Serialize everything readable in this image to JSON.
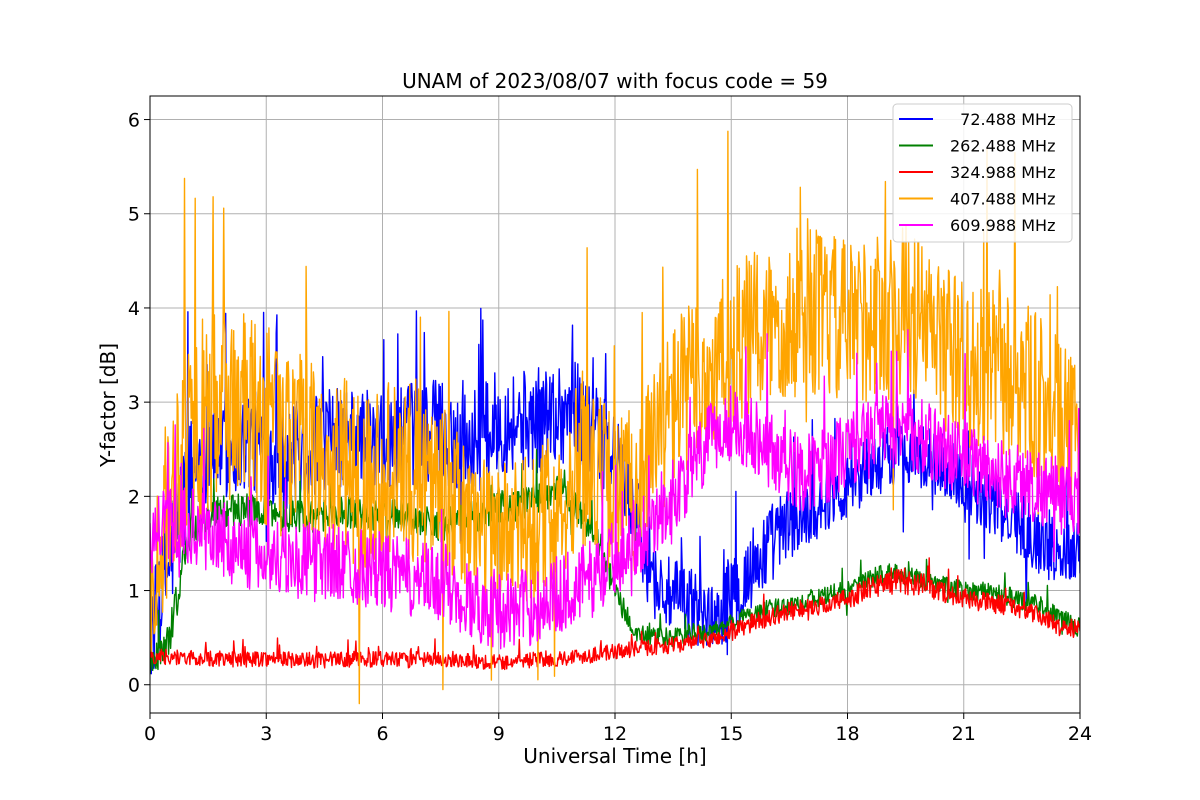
{
  "chart_data": {
    "type": "line",
    "title": "UNAM of 2023/08/07 with focus code = 59",
    "xlabel": "Universal Time [h]",
    "ylabel": "Y-factor [dB]",
    "xlim": [
      0,
      24
    ],
    "ylim": [
      -0.3,
      6.25
    ],
    "xticks": [
      "0",
      "3",
      "6",
      "9",
      "12",
      "15",
      "18",
      "21",
      "24"
    ],
    "yticks": [
      "0",
      "1",
      "2",
      "3",
      "4",
      "5",
      "6"
    ],
    "grid": true,
    "legend_position": "top-right",
    "series": [
      {
        "name": "  72.488 MHz",
        "color": "#0000ff",
        "x": [
          0,
          0.5,
          1,
          1.5,
          2,
          2.5,
          3,
          3.5,
          4,
          4.5,
          5,
          5.5,
          6,
          6.5,
          7,
          7.5,
          8,
          8.5,
          9,
          9.5,
          10,
          10.5,
          11,
          11.5,
          12,
          12.5,
          13,
          13.5,
          14,
          14.5,
          15,
          15.5,
          16,
          16.5,
          17,
          17.5,
          18,
          18.5,
          19,
          19.5,
          20,
          20.5,
          21,
          21.5,
          22,
          22.5,
          23,
          23.5,
          24
        ],
        "mid": [
          0.5,
          1.3,
          2.2,
          2.6,
          2.5,
          2.6,
          2.5,
          2.4,
          2.5,
          2.6,
          2.6,
          2.6,
          2.5,
          2.6,
          2.7,
          2.7,
          2.6,
          2.6,
          2.8,
          2.8,
          2.8,
          2.9,
          2.9,
          2.6,
          2.4,
          1.8,
          1.1,
          0.9,
          0.85,
          0.7,
          0.9,
          1.2,
          1.5,
          1.7,
          1.8,
          2.0,
          2.1,
          2.3,
          2.4,
          2.5,
          2.4,
          2.3,
          2.2,
          2.0,
          1.8,
          1.7,
          1.5,
          1.4,
          1.5
        ],
        "spread": [
          0.8,
          0.9,
          0.9,
          0.9,
          0.8,
          0.8,
          0.8,
          0.8,
          0.8,
          0.8,
          0.8,
          0.8,
          0.8,
          0.8,
          0.8,
          0.8,
          0.8,
          0.8,
          0.8,
          0.8,
          0.8,
          0.8,
          0.8,
          0.8,
          0.7,
          0.7,
          0.6,
          0.6,
          0.6,
          0.5,
          0.6,
          0.7,
          0.6,
          0.6,
          0.5,
          0.5,
          0.5,
          0.5,
          0.5,
          0.5,
          0.5,
          0.5,
          0.5,
          0.5,
          0.5,
          0.5,
          0.5,
          0.5,
          0.5
        ]
      },
      {
        "name": "262.488 MHz",
        "color": "#008000",
        "x": [
          0,
          0.5,
          1,
          1.5,
          2,
          2.5,
          3,
          3.5,
          4,
          4.5,
          5,
          5.5,
          6,
          6.5,
          7,
          7.5,
          8,
          8.5,
          9,
          9.5,
          10,
          10.5,
          11,
          11.5,
          12,
          12.5,
          13,
          13.5,
          14,
          14.5,
          15,
          15.5,
          16,
          16.5,
          17,
          17.5,
          18,
          18.5,
          19,
          19.5,
          20,
          20.5,
          21,
          21.5,
          22,
          22.5,
          23,
          23.5,
          24
        ],
        "mid": [
          0.2,
          0.5,
          1.6,
          1.8,
          1.85,
          1.85,
          1.85,
          1.8,
          1.8,
          1.8,
          1.85,
          1.8,
          1.8,
          1.8,
          1.75,
          1.7,
          1.75,
          1.8,
          1.9,
          1.9,
          2.0,
          2.05,
          1.9,
          1.6,
          1.0,
          0.55,
          0.5,
          0.5,
          0.55,
          0.55,
          0.65,
          0.75,
          0.8,
          0.85,
          0.9,
          0.95,
          1.0,
          1.1,
          1.2,
          1.15,
          1.1,
          1.05,
          1.0,
          1.0,
          0.95,
          0.9,
          0.85,
          0.7,
          0.6
        ],
        "spread": [
          0.2,
          0.3,
          0.3,
          0.3,
          0.25,
          0.25,
          0.25,
          0.25,
          0.25,
          0.25,
          0.25,
          0.25,
          0.25,
          0.25,
          0.25,
          0.25,
          0.25,
          0.25,
          0.25,
          0.25,
          0.25,
          0.25,
          0.25,
          0.25,
          0.2,
          0.15,
          0.15,
          0.15,
          0.15,
          0.15,
          0.15,
          0.15,
          0.15,
          0.15,
          0.15,
          0.15,
          0.15,
          0.15,
          0.15,
          0.15,
          0.15,
          0.15,
          0.15,
          0.15,
          0.15,
          0.15,
          0.15,
          0.15,
          0.15
        ]
      },
      {
        "name": "324.988 MHz",
        "color": "#ff0000",
        "x": [
          0,
          0.5,
          1,
          1.5,
          2,
          2.5,
          3,
          3.5,
          4,
          4.5,
          5,
          5.5,
          6,
          6.5,
          7,
          7.5,
          8,
          8.5,
          9,
          9.5,
          10,
          10.5,
          11,
          11.5,
          12,
          12.5,
          13,
          13.5,
          14,
          14.5,
          15,
          15.5,
          16,
          16.5,
          17,
          17.5,
          18,
          18.5,
          19,
          19.5,
          20,
          20.5,
          21,
          21.5,
          22,
          22.5,
          23,
          23.5,
          24
        ],
        "mid": [
          0.3,
          0.3,
          0.28,
          0.28,
          0.27,
          0.27,
          0.28,
          0.27,
          0.26,
          0.26,
          0.27,
          0.27,
          0.27,
          0.26,
          0.26,
          0.27,
          0.27,
          0.25,
          0.24,
          0.25,
          0.27,
          0.28,
          0.3,
          0.32,
          0.35,
          0.38,
          0.4,
          0.42,
          0.45,
          0.48,
          0.55,
          0.65,
          0.72,
          0.78,
          0.82,
          0.85,
          0.92,
          1.0,
          1.1,
          1.1,
          1.05,
          0.98,
          0.92,
          0.88,
          0.85,
          0.8,
          0.72,
          0.62,
          0.58
        ],
        "spread": [
          0.12,
          0.12,
          0.12,
          0.12,
          0.12,
          0.12,
          0.12,
          0.12,
          0.12,
          0.12,
          0.12,
          0.12,
          0.12,
          0.12,
          0.12,
          0.12,
          0.12,
          0.12,
          0.12,
          0.12,
          0.12,
          0.12,
          0.12,
          0.12,
          0.12,
          0.12,
          0.12,
          0.12,
          0.12,
          0.12,
          0.14,
          0.14,
          0.14,
          0.14,
          0.14,
          0.14,
          0.16,
          0.18,
          0.2,
          0.2,
          0.18,
          0.16,
          0.15,
          0.15,
          0.15,
          0.14,
          0.14,
          0.14,
          0.14
        ]
      },
      {
        "name": "407.488 MHz",
        "color": "#ffa500",
        "x": [
          0,
          0.5,
          1,
          1.5,
          2,
          2.5,
          3,
          3.5,
          4,
          4.5,
          5,
          5.5,
          6,
          6.5,
          7,
          7.5,
          8,
          8.5,
          9,
          9.5,
          10,
          10.5,
          11,
          11.5,
          12,
          12.5,
          13,
          13.5,
          14,
          14.5,
          15,
          15.5,
          16,
          16.5,
          17,
          17.5,
          18,
          18.5,
          19,
          19.5,
          20,
          20.5,
          21,
          21.5,
          22,
          22.5,
          23,
          23.5,
          24
        ],
        "mid": [
          1.0,
          2.0,
          2.8,
          2.8,
          3.0,
          2.9,
          2.7,
          2.6,
          2.5,
          2.3,
          2.3,
          2.2,
          2.3,
          2.2,
          2.3,
          2.1,
          1.8,
          1.7,
          1.6,
          1.6,
          1.7,
          1.9,
          2.3,
          2.3,
          2.0,
          2.1,
          2.5,
          3.0,
          3.2,
          3.3,
          3.5,
          3.7,
          3.8,
          3.9,
          4.0,
          3.9,
          3.8,
          3.9,
          3.9,
          4.0,
          3.8,
          3.6,
          3.4,
          3.3,
          3.3,
          3.2,
          3.0,
          2.8,
          2.5
        ],
        "spread": [
          1.0,
          1.5,
          1.6,
          1.6,
          1.6,
          1.5,
          1.5,
          1.5,
          1.4,
          1.4,
          1.4,
          1.4,
          1.4,
          1.4,
          1.4,
          1.3,
          1.2,
          1.1,
          1.1,
          1.1,
          1.2,
          1.2,
          1.3,
          1.3,
          1.2,
          1.3,
          1.3,
          1.3,
          1.3,
          1.3,
          1.3,
          1.3,
          1.3,
          1.3,
          1.3,
          1.3,
          1.3,
          1.3,
          1.3,
          1.3,
          1.3,
          1.3,
          1.3,
          1.3,
          1.3,
          1.3,
          1.3,
          1.2,
          1.2
        ]
      },
      {
        "name": "609.988 MHz",
        "color": "#ff00ff",
        "x": [
          0,
          0.5,
          1,
          1.5,
          2,
          2.5,
          3,
          3.5,
          4,
          4.5,
          5,
          5.5,
          6,
          6.5,
          7,
          7.5,
          8,
          8.5,
          9,
          9.5,
          10,
          10.5,
          11,
          11.5,
          12,
          12.5,
          13,
          13.5,
          14,
          14.5,
          15,
          15.5,
          16,
          16.5,
          17,
          17.5,
          18,
          18.5,
          19,
          19.5,
          20,
          20.5,
          21,
          21.5,
          22,
          22.5,
          23,
          23.5,
          24
        ],
        "mid": [
          1.6,
          1.7,
          1.7,
          1.6,
          1.5,
          1.4,
          1.35,
          1.35,
          1.3,
          1.3,
          1.3,
          1.25,
          1.2,
          1.15,
          1.1,
          1.05,
          0.95,
          0.85,
          0.8,
          0.8,
          0.85,
          0.95,
          1.05,
          1.15,
          1.35,
          1.55,
          1.75,
          2.0,
          2.3,
          2.6,
          2.8,
          2.7,
          2.5,
          2.3,
          2.25,
          2.35,
          2.5,
          2.6,
          2.7,
          2.7,
          2.6,
          2.5,
          2.4,
          2.3,
          2.2,
          2.15,
          2.1,
          2.0,
          1.8
        ],
        "spread": [
          0.6,
          0.6,
          0.6,
          0.6,
          0.6,
          0.6,
          0.6,
          0.6,
          0.6,
          0.6,
          0.6,
          0.6,
          0.6,
          0.6,
          0.6,
          0.6,
          0.6,
          0.6,
          0.6,
          0.6,
          0.6,
          0.6,
          0.6,
          0.6,
          0.6,
          0.6,
          0.6,
          0.6,
          0.6,
          0.6,
          0.6,
          0.6,
          0.6,
          0.6,
          0.6,
          0.6,
          0.6,
          0.6,
          0.6,
          0.6,
          0.6,
          0.6,
          0.6,
          0.6,
          0.6,
          0.6,
          0.6,
          0.6,
          0.6
        ]
      }
    ]
  }
}
